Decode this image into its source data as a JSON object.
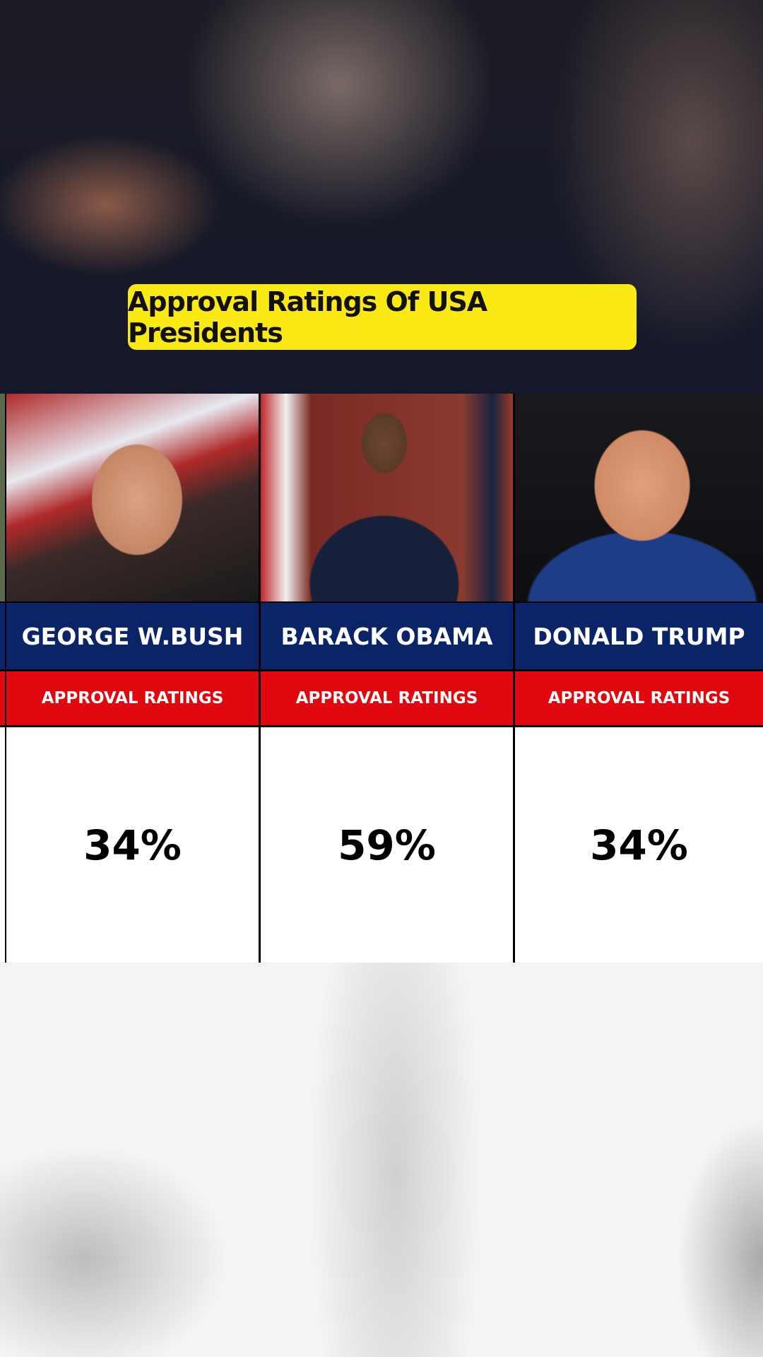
{
  "title": "Approval Ratings Of USA Presidents",
  "columns": [
    {
      "name": "GEORGE W.BUSH",
      "label": "APPROVAL RATINGS",
      "value": "34%"
    },
    {
      "name": "BARACK OBAMA",
      "label": "APPROVAL RATINGS",
      "value": "59%"
    },
    {
      "name": "DONALD TRUMP",
      "label": "APPROVAL RATINGS",
      "value": "34%"
    }
  ]
}
